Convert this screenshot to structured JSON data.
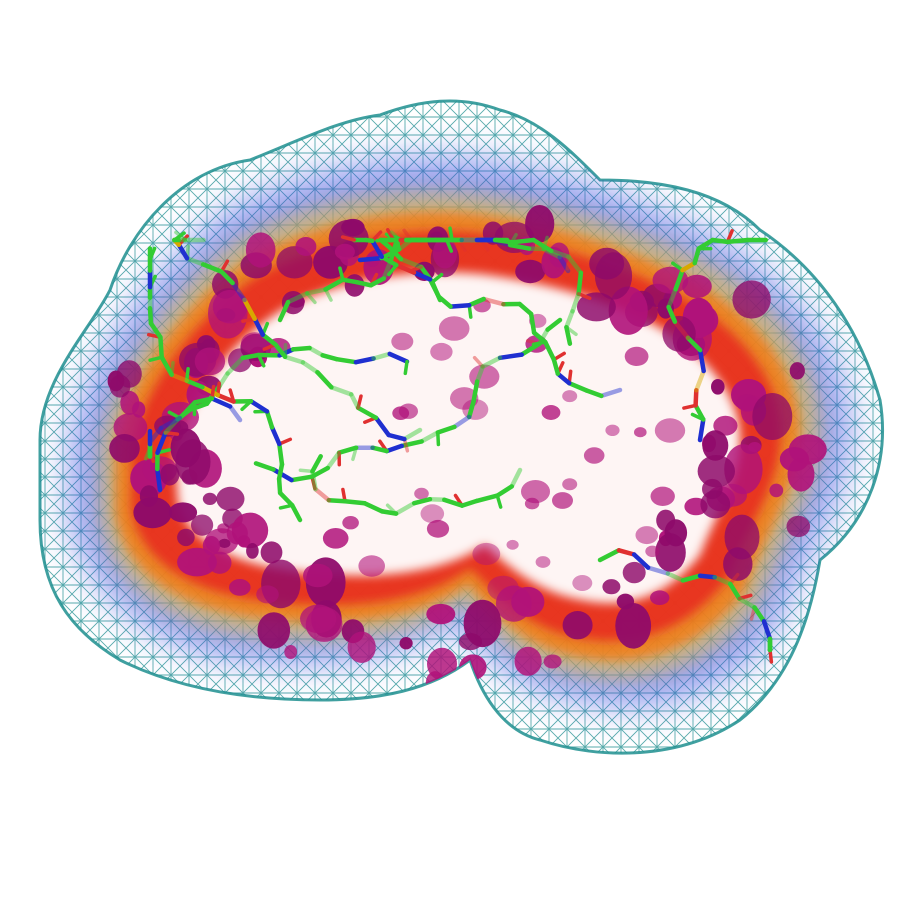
{
  "figure": {
    "colors": {
      "background": "#ffffff",
      "mesh": "#1f8f8f",
      "density_outer": "#3a4de0",
      "density_cool": "#7fa8e8",
      "density_mid_yellow": "#f2c230",
      "density_orange": "#f57a10",
      "density_red": "#e8281e",
      "density_core": "#b0127a",
      "density_core_dark": "#8e0a6a",
      "carbon": "#33cc33",
      "nitrogen": "#1f2fd0",
      "oxygen": "#e03030",
      "sulfur": "#d8a800"
    },
    "layers": [
      "mesh-surface",
      "density-halo",
      "density-blobs",
      "molecule-sticks"
    ]
  }
}
